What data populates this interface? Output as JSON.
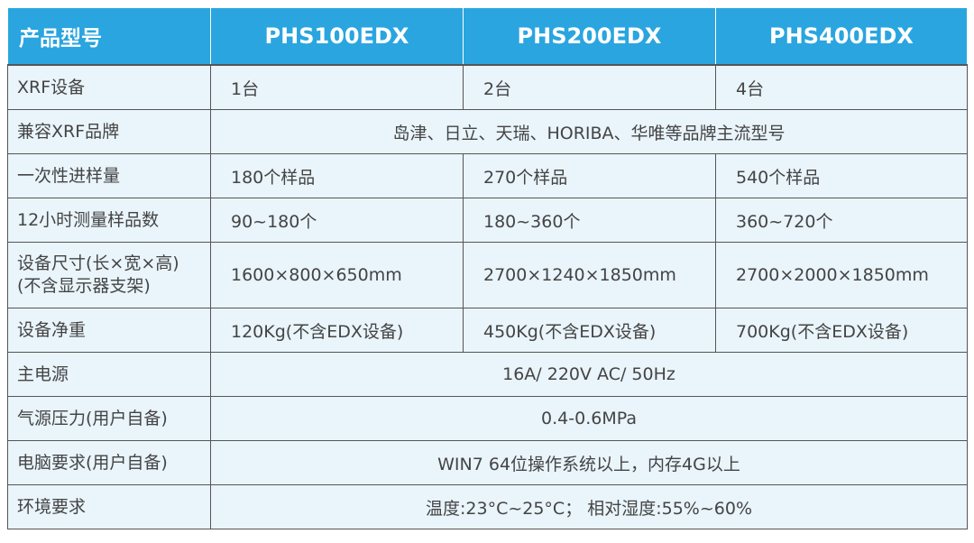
{
  "table": {
    "header": [
      "产品型号",
      "PHS100EDX",
      "PHS200EDX",
      "PHS400EDX"
    ],
    "rows": [
      {
        "label": [
          "XRF设备"
        ],
        "cells": [
          "1台",
          "2台",
          "4台"
        ]
      },
      {
        "label": [
          "兼容XRF品牌"
        ],
        "cells": [
          "岛津、日立、天瑞、HORIBA、华唯等品牌主流型号"
        ]
      },
      {
        "label": [
          "一次性进样量"
        ],
        "cells": [
          "180个样品",
          "270个样品",
          "540个样品"
        ]
      },
      {
        "label": [
          "12小时测量样品数"
        ],
        "cells": [
          "90~180个",
          "180~360个",
          "360~720个"
        ]
      },
      {
        "label": [
          "设备尺寸(长×宽×高)",
          "(不含显示器支架)"
        ],
        "cells": [
          "1600×800×650mm",
          "2700×1240×1850mm",
          "2700×2000×1850mm"
        ]
      },
      {
        "label": [
          "设备净重"
        ],
        "cells": [
          "120Kg(不含EDX设备)",
          "450Kg(不含EDX设备)",
          "700Kg(不含EDX设备)"
        ]
      },
      {
        "label": [
          "主电源"
        ],
        "cells": [
          "16A/ 220V AC/ 50Hz"
        ]
      },
      {
        "label": [
          "气源压力(用户自备)"
        ],
        "cells": [
          "0.4-0.6MPa"
        ]
      },
      {
        "label": [
          "电脑要求(用户自备)"
        ],
        "cells": [
          "WIN7 64位操作系统以上，内存4G以上"
        ]
      },
      {
        "label": [
          "环境要求"
        ],
        "cells": [
          "温度:23°C~25°C；  相对湿度:55%~60%"
        ]
      }
    ]
  }
}
